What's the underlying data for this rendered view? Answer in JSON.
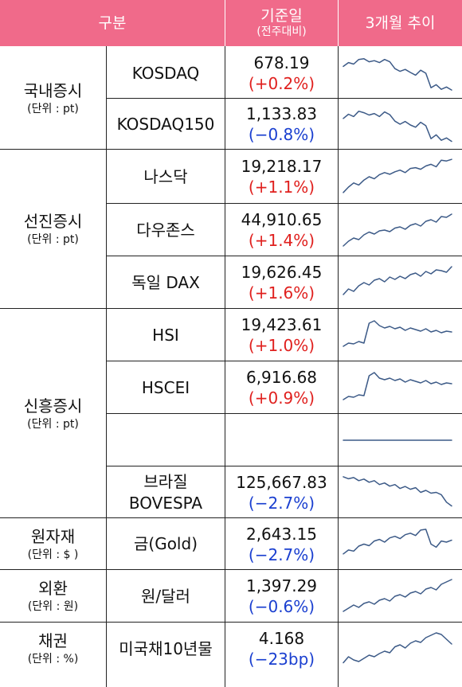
{
  "header": {
    "col1": "구분",
    "col2_line1": "기준일",
    "col2_line2": "(전주대비)",
    "col3": "3개월 추이"
  },
  "colors": {
    "header_bg": "#f06a8a",
    "up": "#e0201e",
    "down": "#1a3fd0",
    "sparkline": "#3c5a87"
  },
  "categories": [
    {
      "name": "국내증시",
      "unit": "(단위 : pt)"
    },
    {
      "name": "선진증시",
      "unit": "(단위 : pt)"
    },
    {
      "name": "신흥증시",
      "unit": "(단위 : pt)"
    },
    {
      "name": "원자재",
      "unit": "(단위 : $ )"
    },
    {
      "name": "외환",
      "unit": "(단위 : 원)"
    },
    {
      "name": "채권",
      "unit": "(단위 : %)"
    }
  ],
  "rows": [
    {
      "name": "KOSDAQ",
      "value": "678.19",
      "change": "(+0.2%)",
      "direction": "up",
      "trend": [
        0.68,
        0.78,
        0.74,
        0.86,
        0.88,
        0.8,
        0.83,
        0.78,
        0.86,
        0.8,
        0.62,
        0.55,
        0.6,
        0.52,
        0.45,
        0.58,
        0.5,
        0.12,
        0.2,
        0.08,
        0.14,
        0.06
      ]
    },
    {
      "name": "KOSDAQ150",
      "value": "1,133.83",
      "change": "(−0.8%)",
      "direction": "down",
      "trend": [
        0.65,
        0.76,
        0.7,
        0.84,
        0.8,
        0.74,
        0.78,
        0.7,
        0.82,
        0.75,
        0.58,
        0.5,
        0.57,
        0.48,
        0.42,
        0.55,
        0.46,
        0.12,
        0.22,
        0.08,
        0.14,
        0.05
      ]
    },
    {
      "name": "나스닥",
      "value": "19,218.17",
      "change": "(+1.1%)",
      "direction": "up",
      "trend": [
        0.12,
        0.25,
        0.35,
        0.3,
        0.42,
        0.5,
        0.45,
        0.55,
        0.6,
        0.56,
        0.62,
        0.66,
        0.6,
        0.7,
        0.72,
        0.68,
        0.76,
        0.8,
        0.74,
        0.9,
        0.88,
        0.92
      ]
    },
    {
      "name": "다우존스",
      "value": "44,910.65",
      "change": "(+1.4%)",
      "direction": "up",
      "trend": [
        0.1,
        0.22,
        0.3,
        0.26,
        0.38,
        0.45,
        0.4,
        0.48,
        0.5,
        0.46,
        0.55,
        0.58,
        0.52,
        0.62,
        0.66,
        0.6,
        0.72,
        0.76,
        0.7,
        0.84,
        0.82,
        0.9
      ]
    },
    {
      "name": "독일 DAX",
      "value": "19,626.45",
      "change": "(+1.6%)",
      "direction": "up",
      "trend": [
        0.2,
        0.34,
        0.28,
        0.42,
        0.5,
        0.44,
        0.56,
        0.6,
        0.52,
        0.64,
        0.58,
        0.66,
        0.6,
        0.7,
        0.74,
        0.66,
        0.78,
        0.72,
        0.82,
        0.8,
        0.76,
        0.9
      ]
    },
    {
      "name": "HSI",
      "value": "19,423.61",
      "change": "(+1.0%)",
      "direction": "up",
      "trend": [
        0.22,
        0.3,
        0.28,
        0.34,
        0.3,
        0.8,
        0.86,
        0.74,
        0.68,
        0.72,
        0.66,
        0.7,
        0.62,
        0.68,
        0.64,
        0.6,
        0.66,
        0.58,
        0.62,
        0.56,
        0.6,
        0.58
      ]
    },
    {
      "name": "HSCEI",
      "value": "6,916.68",
      "change": "(+0.9%)",
      "direction": "up",
      "trend": [
        0.2,
        0.28,
        0.26,
        0.32,
        0.3,
        0.8,
        0.88,
        0.74,
        0.7,
        0.74,
        0.68,
        0.72,
        0.64,
        0.7,
        0.66,
        0.62,
        0.68,
        0.6,
        0.64,
        0.58,
        0.62,
        0.6
      ]
    },
    {
      "name": "",
      "value": "",
      "change": "",
      "direction": "",
      "trend": [
        0.5,
        0.5,
        0.5,
        0.5,
        0.5,
        0.5,
        0.5,
        0.5,
        0.5,
        0.5,
        0.5,
        0.5,
        0.5,
        0.5,
        0.5,
        0.5,
        0.5,
        0.5,
        0.5,
        0.5,
        0.5,
        0.5
      ]
    },
    {
      "name": "브라질\nBOVESPA",
      "value": "125,667.83",
      "change": "(−2.7%)",
      "direction": "down",
      "trend": [
        0.9,
        0.85,
        0.88,
        0.8,
        0.84,
        0.76,
        0.8,
        0.7,
        0.74,
        0.66,
        0.7,
        0.6,
        0.65,
        0.58,
        0.62,
        0.5,
        0.55,
        0.48,
        0.5,
        0.44,
        0.25,
        0.15
      ]
    },
    {
      "name": "금(Gold)",
      "value": "2,643.15",
      "change": "(−2.7%)",
      "direction": "down",
      "trend": [
        0.25,
        0.35,
        0.32,
        0.45,
        0.5,
        0.46,
        0.58,
        0.62,
        0.55,
        0.66,
        0.7,
        0.64,
        0.74,
        0.78,
        0.72,
        0.86,
        0.88,
        0.5,
        0.42,
        0.58,
        0.55,
        0.6
      ]
    },
    {
      "name": "원/달러",
      "value": "1,397.29",
      "change": "(−0.6%)",
      "direction": "down",
      "trend": [
        0.12,
        0.2,
        0.28,
        0.22,
        0.32,
        0.36,
        0.3,
        0.4,
        0.44,
        0.38,
        0.5,
        0.54,
        0.48,
        0.58,
        0.62,
        0.56,
        0.68,
        0.72,
        0.66,
        0.8,
        0.86,
        0.92
      ]
    },
    {
      "name": "미국채10년물",
      "value": "4.168",
      "change": "(−23bp)",
      "direction": "down",
      "trend": [
        0.15,
        0.3,
        0.22,
        0.18,
        0.26,
        0.34,
        0.3,
        0.38,
        0.44,
        0.4,
        0.55,
        0.6,
        0.52,
        0.64,
        0.7,
        0.66,
        0.78,
        0.84,
        0.9,
        0.86,
        0.74,
        0.62
      ]
    }
  ]
}
